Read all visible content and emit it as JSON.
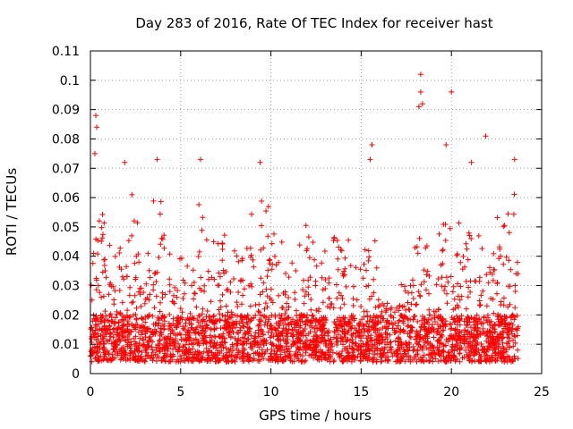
{
  "chart_data": {
    "type": "scatter",
    "title": "Day 283 of 2016, Rate Of TEC Index for receiver hast",
    "xlabel": "GPS time / hours",
    "ylabel": "ROTI / TECUs",
    "xlim": [
      0,
      25
    ],
    "ylim": [
      0,
      0.11
    ],
    "x_ticks": [
      0,
      5,
      10,
      15,
      20,
      25
    ],
    "x_tick_labels": [
      "0",
      "5",
      "10",
      "15",
      "20",
      "25"
    ],
    "y_ticks": [
      0,
      0.01,
      0.02,
      0.03,
      0.04,
      0.05,
      0.06,
      0.07,
      0.08,
      0.09,
      0.1,
      0.11
    ],
    "y_tick_labels": [
      "0",
      "0.01",
      "0.02",
      "0.03",
      "0.04",
      "0.05",
      "0.06",
      "0.07",
      "0.08",
      "0.09",
      "0.1",
      "0.11"
    ],
    "grid": true,
    "marker": "+",
    "color": "#ff0000",
    "series": [
      {
        "name": "ROTI",
        "x_range": [
          0.0,
          23.75
        ],
        "notes_highlight_points": [
          {
            "x": 0.3,
            "y": 0.088
          },
          {
            "x": 0.35,
            "y": 0.084
          },
          {
            "x": 0.25,
            "y": 0.075
          },
          {
            "x": 1.9,
            "y": 0.072
          },
          {
            "x": 3.7,
            "y": 0.073
          },
          {
            "x": 6.1,
            "y": 0.073
          },
          {
            "x": 9.4,
            "y": 0.072
          },
          {
            "x": 15.6,
            "y": 0.078
          },
          {
            "x": 15.5,
            "y": 0.073
          },
          {
            "x": 18.3,
            "y": 0.102
          },
          {
            "x": 18.3,
            "y": 0.096
          },
          {
            "x": 18.2,
            "y": 0.091
          },
          {
            "x": 18.4,
            "y": 0.092
          },
          {
            "x": 20.0,
            "y": 0.096
          },
          {
            "x": 19.7,
            "y": 0.078
          },
          {
            "x": 21.9,
            "y": 0.081
          },
          {
            "x": 21.1,
            "y": 0.072
          },
          {
            "x": 23.5,
            "y": 0.073
          }
        ],
        "envelope": [
          {
            "x": 0.0,
            "peak": 0.05
          },
          {
            "x": 0.5,
            "peak": 0.07
          },
          {
            "x": 1.0,
            "peak": 0.045
          },
          {
            "x": 1.5,
            "peak": 0.04
          },
          {
            "x": 2.0,
            "peak": 0.068
          },
          {
            "x": 2.5,
            "peak": 0.06
          },
          {
            "x": 3.0,
            "peak": 0.045
          },
          {
            "x": 3.5,
            "peak": 0.06
          },
          {
            "x": 4.0,
            "peak": 0.062
          },
          {
            "x": 4.5,
            "peak": 0.045
          },
          {
            "x": 5.0,
            "peak": 0.04
          },
          {
            "x": 5.5,
            "peak": 0.045
          },
          {
            "x": 6.0,
            "peak": 0.06
          },
          {
            "x": 6.5,
            "peak": 0.045
          },
          {
            "x": 7.0,
            "peak": 0.048
          },
          {
            "x": 7.5,
            "peak": 0.05
          },
          {
            "x": 8.0,
            "peak": 0.042
          },
          {
            "x": 8.5,
            "peak": 0.045
          },
          {
            "x": 9.0,
            "peak": 0.058
          },
          {
            "x": 9.5,
            "peak": 0.06
          },
          {
            "x": 10.0,
            "peak": 0.062
          },
          {
            "x": 10.5,
            "peak": 0.05
          },
          {
            "x": 11.0,
            "peak": 0.045
          },
          {
            "x": 11.5,
            "peak": 0.04
          },
          {
            "x": 12.0,
            "peak": 0.065
          },
          {
            "x": 12.5,
            "peak": 0.04
          },
          {
            "x": 13.0,
            "peak": 0.042
          },
          {
            "x": 13.5,
            "peak": 0.048
          },
          {
            "x": 14.0,
            "peak": 0.05
          },
          {
            "x": 14.5,
            "peak": 0.045
          },
          {
            "x": 15.0,
            "peak": 0.055
          },
          {
            "x": 15.5,
            "peak": 0.06
          },
          {
            "x": 16.0,
            "peak": 0.035
          },
          {
            "x": 16.5,
            "peak": 0.03
          },
          {
            "x": 17.0,
            "peak": 0.03
          },
          {
            "x": 17.5,
            "peak": 0.035
          },
          {
            "x": 18.0,
            "peak": 0.055
          },
          {
            "x": 18.5,
            "peak": 0.05
          },
          {
            "x": 19.0,
            "peak": 0.045
          },
          {
            "x": 19.5,
            "peak": 0.06
          },
          {
            "x": 20.0,
            "peak": 0.07
          },
          {
            "x": 20.5,
            "peak": 0.055
          },
          {
            "x": 21.0,
            "peak": 0.065
          },
          {
            "x": 21.5,
            "peak": 0.055
          },
          {
            "x": 22.0,
            "peak": 0.05
          },
          {
            "x": 22.5,
            "peak": 0.06
          },
          {
            "x": 23.0,
            "peak": 0.055
          },
          {
            "x": 23.5,
            "peak": 0.065
          },
          {
            "x": 23.75,
            "peak": 0.045
          }
        ],
        "baseline_range": [
          0.004,
          0.02
        ]
      }
    ]
  }
}
